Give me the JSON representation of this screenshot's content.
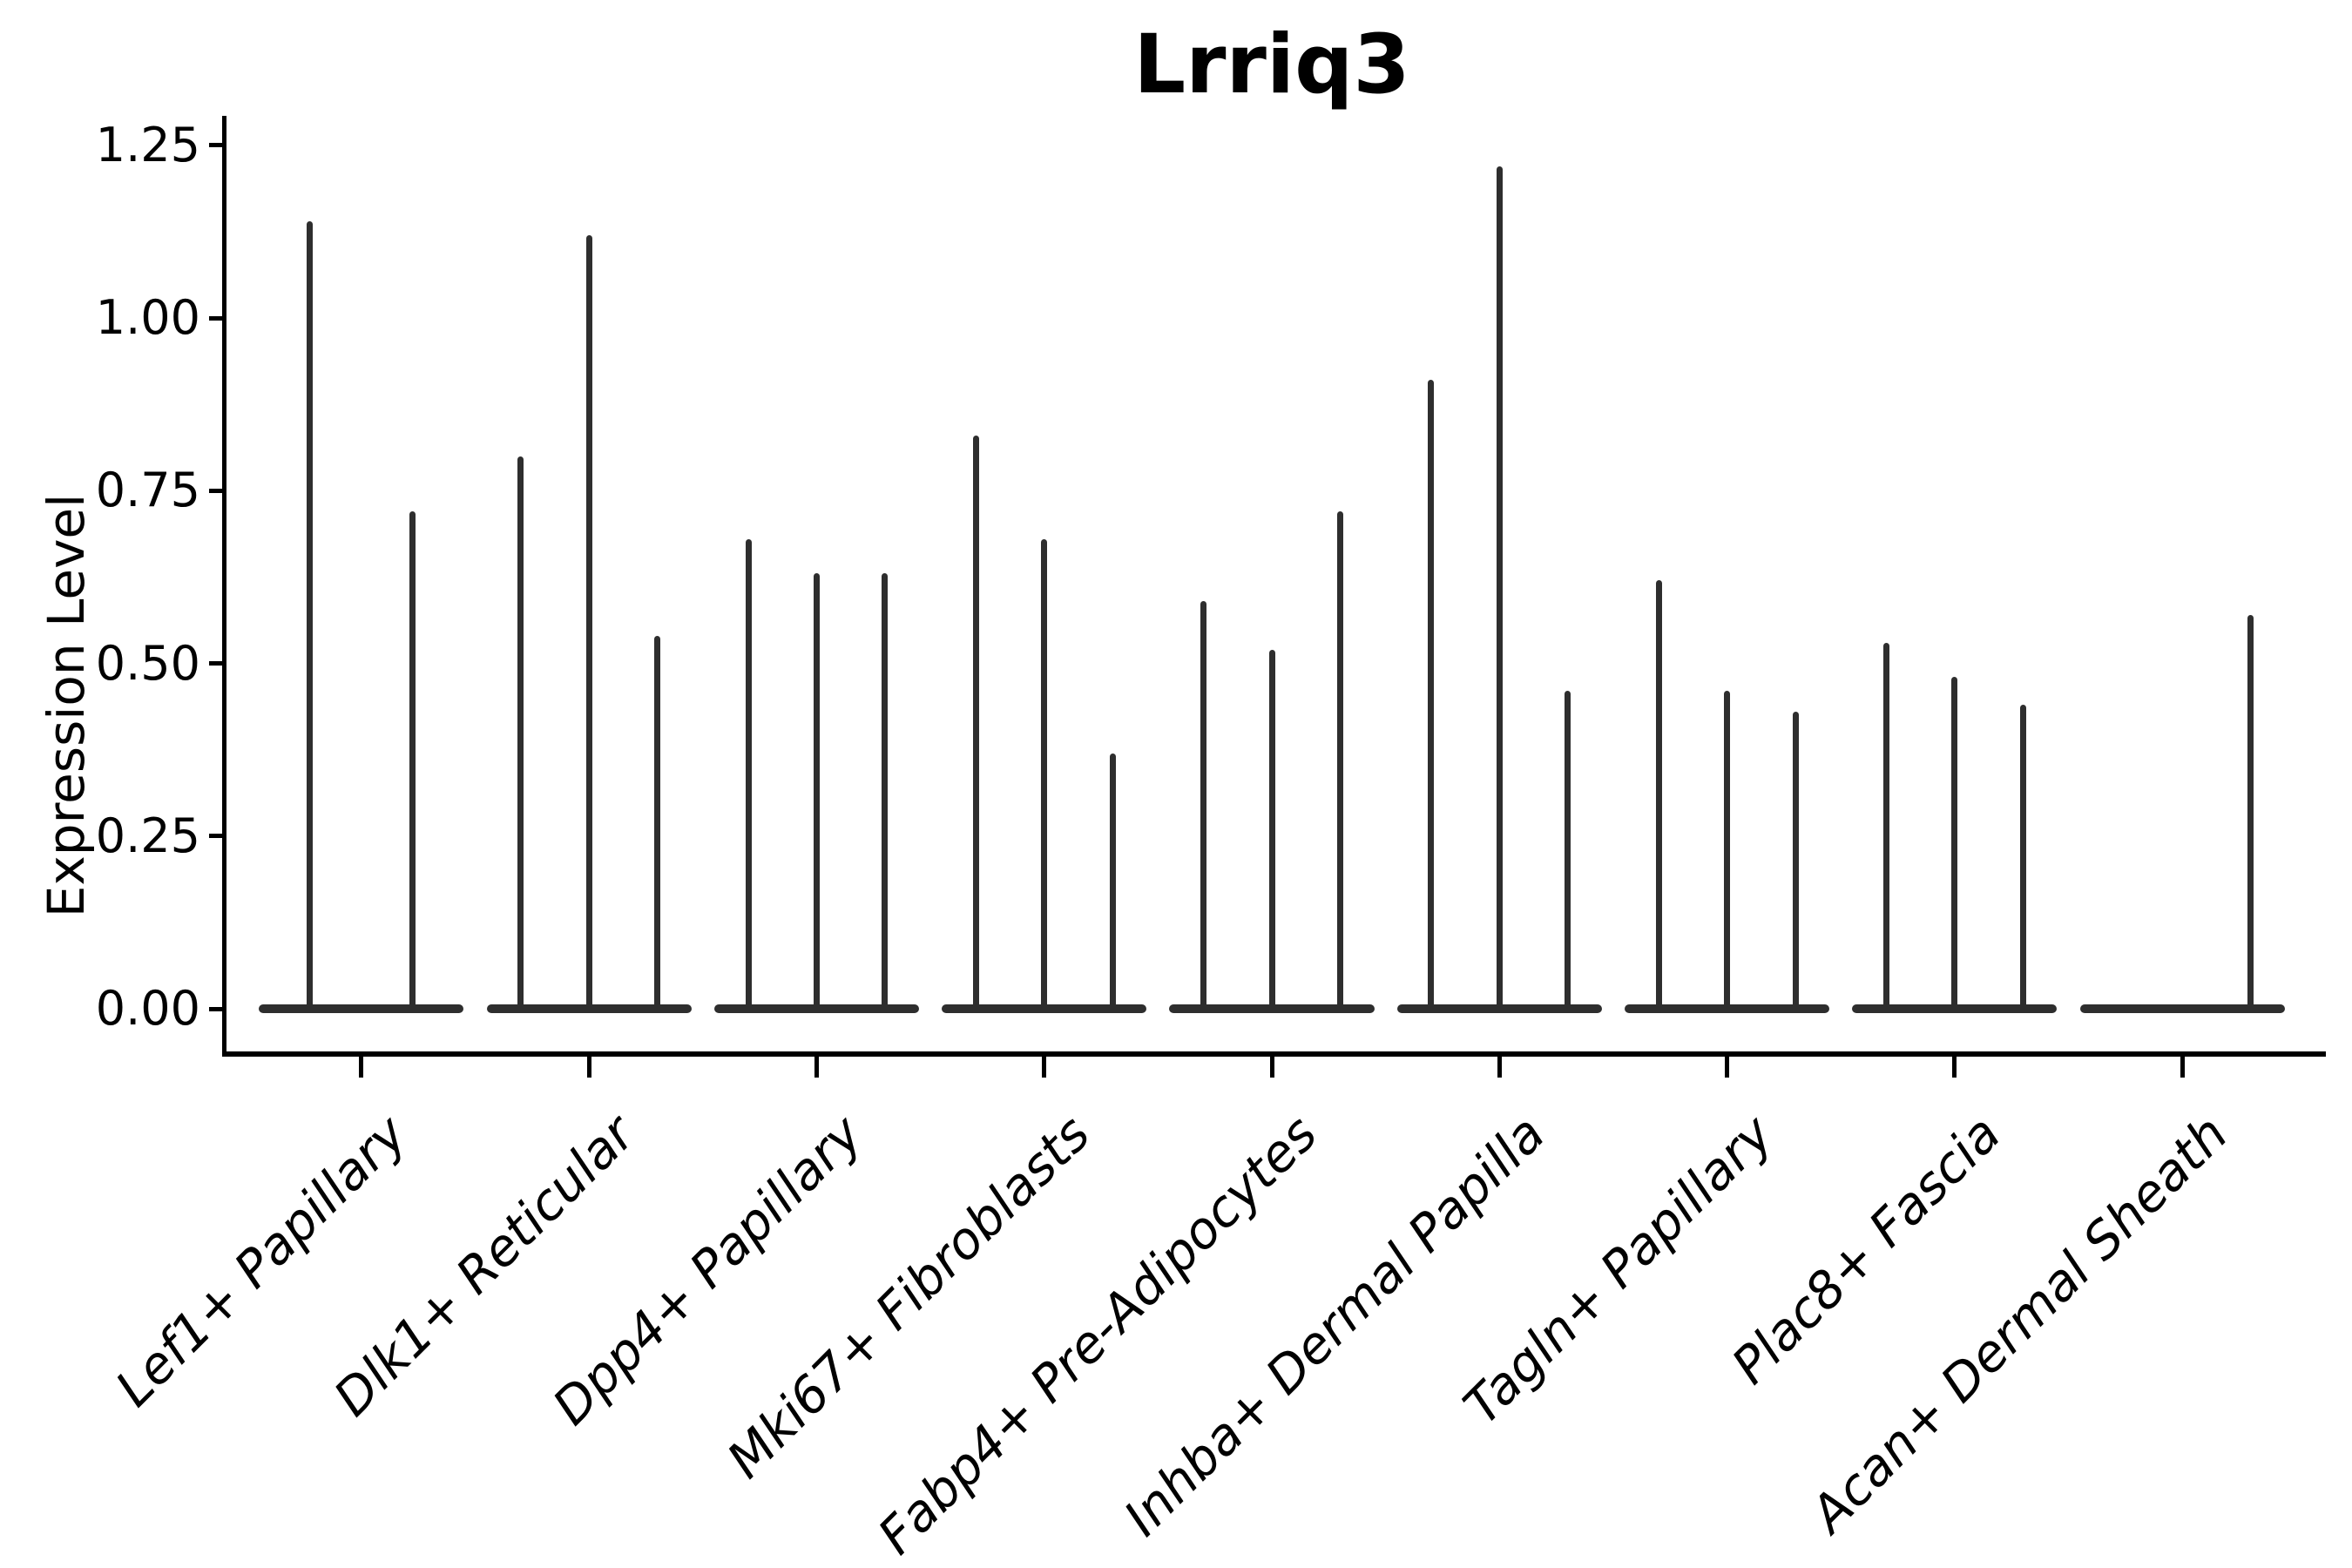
{
  "chart_data": {
    "type": "violin",
    "title": "Lrriq3",
    "ylabel": "Expression Level",
    "xlabel": "",
    "ylim": [
      -0.07,
      1.31
    ],
    "yticks": [
      0.0,
      0.25,
      0.5,
      0.75,
      1.0,
      1.25
    ],
    "ytick_labels": [
      "0.00",
      "0.25",
      "0.50",
      "0.75",
      "1.00",
      "1.25"
    ],
    "grid": false,
    "legend": false,
    "categories": [
      "Lef1+ Papillary",
      "Dlk1+ Reticular",
      "Dpp4+ Papillary",
      "Mki67+ Fibroblasts",
      "Fabp4+ Pre-Adipocytes",
      "Inhba+ Dermal Papilla",
      "Tagln+ Papillary",
      "Plac8+ Fascia",
      "Acan+ Dermal Sheath"
    ],
    "series": [
      {
        "name": "Lef1+ Papillary",
        "violin_peaks": [
          1.14,
          0.72
        ]
      },
      {
        "name": "Dlk1+ Reticular",
        "violin_peaks": [
          0.8,
          1.12,
          0.54
        ]
      },
      {
        "name": "Dpp4+ Papillary",
        "violin_peaks": [
          0.68,
          0.63,
          0.63
        ]
      },
      {
        "name": "Mki67+ Fibroblasts",
        "violin_peaks": [
          0.83,
          0.68,
          0.37
        ]
      },
      {
        "name": "Fabp4+ Pre-Adipocytes",
        "violin_peaks": [
          0.59,
          0.52,
          0.72
        ]
      },
      {
        "name": "Inhba+ Dermal Papilla",
        "violin_peaks": [
          0.91,
          1.22,
          0.46
        ]
      },
      {
        "name": "Tagln+ Papillary",
        "violin_peaks": [
          0.62,
          0.46,
          0.43
        ]
      },
      {
        "name": "Plac8+ Fascia",
        "violin_peaks": [
          0.53,
          0.48,
          0.44
        ]
      },
      {
        "name": "Acan+ Dermal Sheath",
        "violin_peaks": [
          0.0,
          0.0,
          0.57
        ]
      }
    ],
    "description": "Skinny split violins (near-zero width) rising from flattened bases at expression 0; up to 3 violins per cell-type group."
  },
  "style": {
    "background": "#ffffff",
    "violin_color": "#2e2e2e",
    "axis_color": "#000000",
    "text_color": "#000000"
  }
}
